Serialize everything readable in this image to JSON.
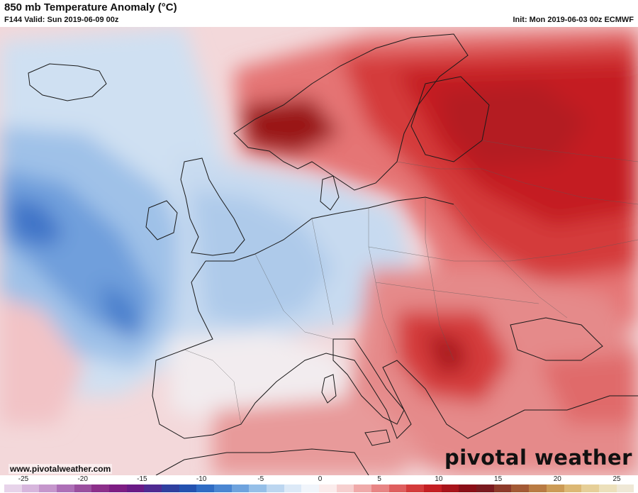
{
  "header": {
    "title": "850 mb Temperature Anomaly (°C)",
    "valid": "F144 Valid: Sun 2019-06-09 00z",
    "init": "Init: Mon 2019-06-03 00z ECMWF"
  },
  "footer": {
    "website": "www.pivotalweather.com",
    "brand": "pivotal weather"
  },
  "colorbar": {
    "ticks": [
      "-25",
      "-20",
      "-15",
      "-10",
      "-5",
      "0",
      "5",
      "10",
      "15",
      "20",
      "25"
    ],
    "colors": [
      "#e7d3ea",
      "#d7b6dd",
      "#c596cc",
      "#ad6fb7",
      "#9a4f9f",
      "#8c2f8a",
      "#7d1d83",
      "#6a1a86",
      "#4f2a92",
      "#2f3f9f",
      "#2352b0",
      "#2f6cc4",
      "#4a86d2",
      "#6ea3de",
      "#95bfe8",
      "#bcd6f0",
      "#dce9f7",
      "#f1f5fb",
      "#fbecec",
      "#f6cfcf",
      "#f0aaaa",
      "#e88585",
      "#df5f5f",
      "#d43b3b",
      "#c41f23",
      "#a8141b",
      "#8a0f17",
      "#7a1a1f",
      "#8d3a2a",
      "#a35a35",
      "#b97b43",
      "#cc9b56",
      "#dcb874",
      "#e6cf98",
      "#ece0bb",
      "#efe8d6"
    ],
    "palette": {
      "cold_deep": "#2f6cc4",
      "cold": "#8fb6e6",
      "cold_light": "#cfe0f2",
      "neutral": "#f3f4f8",
      "warm_light": "#f5c9c9",
      "warm": "#e57474",
      "warm_strong": "#d43b3b",
      "warm_deep": "#9a1218",
      "land_outline": "#1a1a1a"
    }
  }
}
